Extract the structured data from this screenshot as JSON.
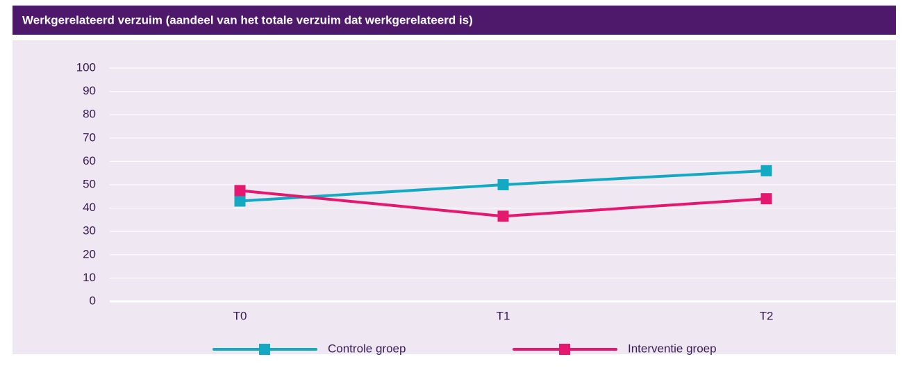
{
  "chart_data": {
    "type": "line",
    "title": "Werkgerelateerd verzuim (aandeel van het totale verzuim dat werkgerelateerd is)",
    "categories": [
      "T0",
      "T1",
      "T2"
    ],
    "series": [
      {
        "name": "Controle groep",
        "color": "#14a9c2",
        "values": [
          43,
          50,
          56
        ]
      },
      {
        "name": "Interventie groep",
        "color": "#e5186f",
        "values": [
          47.5,
          36.5,
          44
        ]
      }
    ],
    "ylim": [
      0,
      100
    ],
    "yticks": [
      0,
      10,
      20,
      30,
      40,
      50,
      60,
      70,
      80,
      90,
      100
    ],
    "grid": true
  }
}
